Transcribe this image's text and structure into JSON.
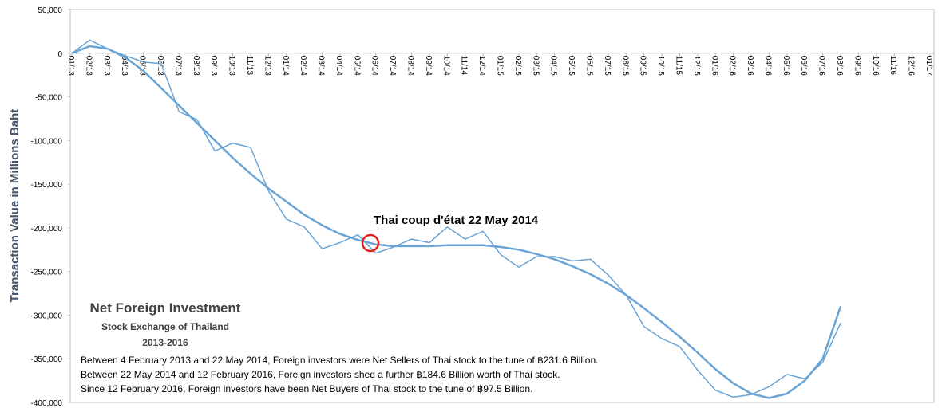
{
  "chart_data": {
    "type": "line",
    "ylabel": "Transaction Value in Millions Baht",
    "title": "Net Foreign Investment",
    "subtitle": "Stock Exchange of Thailand",
    "period": "2013-2016",
    "notes": [
      "Between 4 February 2013 and 22 May 2014, Foreign investors were Net Sellers of Thai stock to the tune of ฿231.6 Billion.",
      "Between 22 May 2014 and 12 February 2016, Foreign investors shed a further ฿184.6 Billion worth of Thai stock.",
      "Since 12 February 2016, Foreign investors have been Net Buyers of Thai stock to the tune of ฿97.5 Billion."
    ],
    "annotation": "Thai coup d'état 22 May 2014",
    "annotation_color": "#e02020",
    "categories": [
      "01/13",
      "02/13",
      "03/13",
      "04/13",
      "05/13",
      "06/13",
      "07/13",
      "08/13",
      "09/13",
      "10/13",
      "11/13",
      "12/13",
      "01/14",
      "02/14",
      "03/14",
      "04/14",
      "05/14",
      "06/14",
      "07/14",
      "08/14",
      "09/14",
      "10/14",
      "11/14",
      "12/14",
      "01/15",
      "02/15",
      "03/15",
      "04/15",
      "05/15",
      "06/15",
      "07/15",
      "08/15",
      "09/15",
      "10/15",
      "11/15",
      "12/15",
      "01/16",
      "02/16",
      "03/16",
      "04/16",
      "05/16",
      "06/16",
      "07/16",
      "08/16",
      "09/16",
      "10/16",
      "11/16",
      "12/16",
      "01/17"
    ],
    "series": [
      {
        "color": "#6aa3d5",
        "width": 1.5,
        "values": [
          0,
          15000,
          5000,
          -3000,
          -10000,
          -12000,
          -67000,
          -76000,
          -112000,
          -103000,
          -108000,
          -158000,
          -190000,
          -199000,
          -224000,
          -217000,
          -208000,
          -229000,
          -222000,
          -213000,
          -217000,
          -199000,
          -213000,
          -204000,
          -231000,
          -245000,
          -233000,
          -233000,
          -238000,
          -236000,
          -254000,
          -277000,
          -313000,
          -327000,
          -336000,
          -363000,
          -386000,
          -394000,
          -391000,
          -382000,
          -368000,
          -373000,
          -354000,
          -309000,
          null,
          null,
          null,
          null,
          null
        ]
      },
      {
        "color": "#6aa3d5",
        "width": 2.5,
        "values": [
          0,
          8000,
          5000,
          -5000,
          -20000,
          -40000,
          -60000,
          -80000,
          -100000,
          -120000,
          -138000,
          -155000,
          -170000,
          -185000,
          -197000,
          -207000,
          -214000,
          -219000,
          -221000,
          -221000,
          -221000,
          -220000,
          -220000,
          -220000,
          -222000,
          -225000,
          -230000,
          -236000,
          -244000,
          -253000,
          -264000,
          -277000,
          -292000,
          -308000,
          -325000,
          -343000,
          -362000,
          -378000,
          -390000,
          -395000,
          -390000,
          -375000,
          -350000,
          -290000,
          null,
          null,
          null,
          null,
          null
        ]
      }
    ],
    "ylim": [
      -400000,
      50000
    ],
    "yticks": [
      {
        "value": 50000,
        "label": "50,000"
      },
      0,
      {
        "value": -50000,
        "label": "-50,000"
      },
      {
        "value": -100000,
        "label": "-100,000"
      },
      {
        "value": -150000,
        "label": "-150,000"
      },
      {
        "value": -200000,
        "label": "-200,000"
      },
      {
        "value": -250000,
        "label": "-250,000"
      },
      {
        "value": -300000,
        "label": "-300,000"
      },
      {
        "value": -350000,
        "label": "-350,000"
      },
      {
        "value": -400000,
        "label": "-400,000"
      }
    ]
  }
}
